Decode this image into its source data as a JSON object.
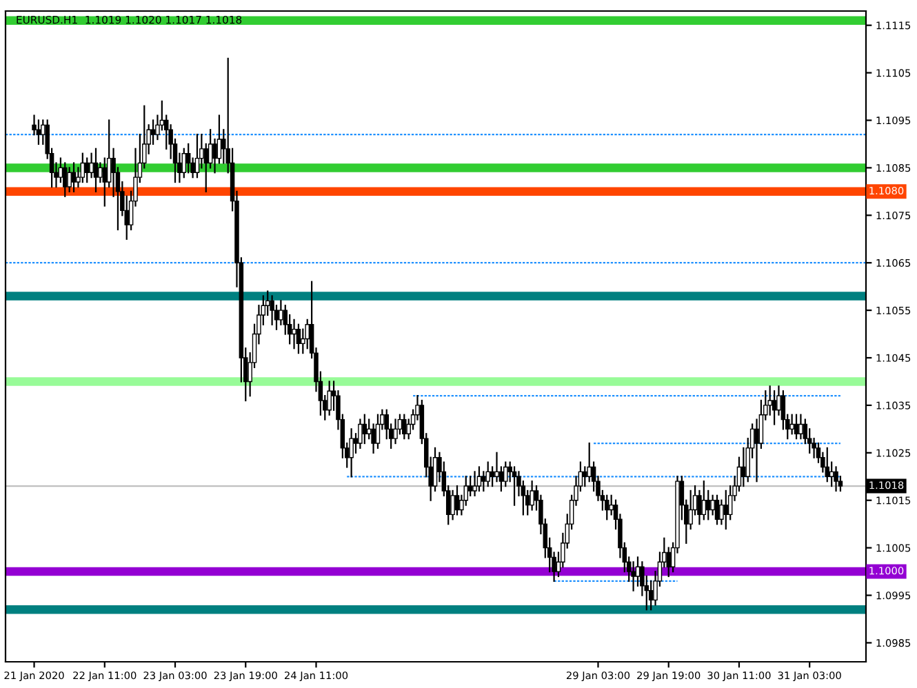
{
  "chart_data": {
    "type": "candlestick",
    "title": "EURUSD.H1  1.1019 1.1020 1.1017 1.1018",
    "categories": [
      "21 Jan 2020",
      null,
      null,
      null,
      null,
      null,
      null,
      null,
      null,
      null,
      null,
      null,
      null,
      null,
      null,
      null,
      "22 Jan 11:00",
      null,
      null,
      null,
      null,
      null,
      null,
      null,
      null,
      null,
      null,
      null,
      null,
      null,
      null,
      null,
      "23 Jan 03:00",
      null,
      null,
      null,
      null,
      null,
      null,
      null,
      null,
      null,
      null,
      null,
      null,
      null,
      null,
      null,
      "23 Jan 19:00",
      null,
      null,
      null,
      null,
      null,
      null,
      null,
      null,
      null,
      null,
      null,
      null,
      null,
      null,
      null,
      "24 Jan 11:00",
      null,
      null,
      null,
      null,
      null,
      null,
      null,
      null,
      null,
      null,
      null,
      null,
      null,
      null,
      null,
      null,
      null,
      null,
      null,
      null,
      null,
      null,
      null,
      null,
      null,
      null,
      null,
      null,
      null,
      null,
      null,
      null,
      null,
      null,
      null,
      null,
      null,
      null,
      null,
      null,
      null,
      null,
      null,
      null,
      null,
      null,
      null,
      null,
      null,
      null,
      null,
      null,
      null,
      null,
      null,
      null,
      null,
      null,
      null,
      null,
      null,
      null,
      null,
      "29 Jan 03:00",
      null,
      null,
      null,
      null,
      null,
      null,
      null,
      null,
      null,
      null,
      null,
      null,
      null,
      null,
      null,
      "29 Jan 19:00",
      null,
      null,
      null,
      null,
      null,
      null,
      null,
      null,
      null,
      null,
      null,
      null,
      null,
      null,
      null,
      "30 Jan 11:00",
      null,
      null,
      null,
      null,
      null,
      null,
      null,
      null,
      null,
      null,
      null,
      null,
      null,
      null,
      null,
      "31 Jan 03:00",
      null,
      null,
      null,
      null,
      null,
      null,
      null
    ],
    "ylim": [
      1.0981,
      1.1118
    ],
    "yticks": [
      1.1115,
      1.1105,
      1.1095,
      1.1085,
      1.1075,
      1.1065,
      1.1055,
      1.1045,
      1.1035,
      1.1025,
      1.1015,
      1.1005,
      1.0995,
      1.0985
    ],
    "ref_lines": [
      {
        "axis": "y",
        "value": 1.1116,
        "color": "#32cd32",
        "line_style": "solid"
      },
      {
        "axis": "y",
        "value": 1.1092,
        "color": "#1e90ff",
        "line_style": "dashed"
      },
      {
        "axis": "y",
        "value": 1.1085,
        "color": "#32cd32",
        "line_style": "solid"
      },
      {
        "axis": "y",
        "value": 1.108,
        "color": "#ff4500",
        "line_style": "solid",
        "label": "1.1080"
      },
      {
        "axis": "y",
        "value": 1.1065,
        "color": "#1e90ff",
        "line_style": "dashed"
      },
      {
        "axis": "y",
        "value": 1.1058,
        "color": "#008080",
        "line_style": "solid"
      },
      {
        "axis": "y",
        "value": 1.104,
        "color": "#98fb98",
        "line_style": "solid"
      },
      {
        "axis": "y",
        "value": 1.1018,
        "color": "#c0c0c0",
        "line_style": "solid",
        "label": "1.1018"
      },
      {
        "axis": "y",
        "value": 1.1,
        "color": "#9400d3",
        "line_style": "solid",
        "label": "1.1000"
      },
      {
        "axis": "y",
        "value": 1.0992,
        "color": "#008080",
        "line_style": "solid"
      }
    ],
    "color": "#000000",
    "ohlc": [
      [
        1.1094,
        1.1096,
        1.1092,
        1.1093
      ],
      [
        1.1093,
        1.1095,
        1.109,
        1.1092
      ],
      [
        1.1092,
        1.1095,
        1.109,
        1.1094
      ],
      [
        1.1094,
        1.1095,
        1.1087,
        1.1088
      ],
      [
        1.1088,
        1.1089,
        1.1081,
        1.1084
      ],
      [
        1.1084,
        1.1086,
        1.1081,
        1.1083
      ],
      [
        1.1083,
        1.1087,
        1.1082,
        1.1085
      ],
      [
        1.1085,
        1.1086,
        1.1079,
        1.1081
      ],
      [
        1.1081,
        1.1085,
        1.108,
        1.1084
      ],
      [
        1.1084,
        1.1086,
        1.108,
        1.1082
      ],
      [
        1.1082,
        1.1085,
        1.1081,
        1.1083
      ],
      [
        1.1083,
        1.1088,
        1.1082,
        1.1086
      ],
      [
        1.1086,
        1.1087,
        1.1082,
        1.1084
      ],
      [
        1.1084,
        1.1088,
        1.1083,
        1.1086
      ],
      [
        1.1086,
        1.1089,
        1.108,
        1.1083
      ],
      [
        1.1083,
        1.1086,
        1.1082,
        1.1085
      ],
      [
        1.1085,
        1.1087,
        1.1077,
        1.1082
      ],
      [
        1.1082,
        1.1095,
        1.1081,
        1.1087
      ],
      [
        1.1087,
        1.1089,
        1.1079,
        1.1084
      ],
      [
        1.1084,
        1.1085,
        1.1072,
        1.108
      ],
      [
        1.108,
        1.1082,
        1.1075,
        1.1076
      ],
      [
        1.1076,
        1.1079,
        1.107,
        1.1073
      ],
      [
        1.1073,
        1.108,
        1.1072,
        1.1078
      ],
      [
        1.1078,
        1.1089,
        1.1077,
        1.1083
      ],
      [
        1.1083,
        1.1092,
        1.1082,
        1.1086
      ],
      [
        1.1086,
        1.1098,
        1.1085,
        1.109
      ],
      [
        1.109,
        1.1094,
        1.1088,
        1.1093
      ],
      [
        1.1093,
        1.1095,
        1.109,
        1.1092
      ],
      [
        1.1092,
        1.1096,
        1.1091,
        1.1094
      ],
      [
        1.1094,
        1.1099,
        1.1093,
        1.1095
      ],
      [
        1.1095,
        1.1096,
        1.1089,
        1.1093
      ],
      [
        1.1093,
        1.1094,
        1.1087,
        1.109
      ],
      [
        1.109,
        1.1091,
        1.1082,
        1.1086
      ],
      [
        1.1086,
        1.1088,
        1.1082,
        1.1084
      ],
      [
        1.1084,
        1.1089,
        1.1083,
        1.1088
      ],
      [
        1.1088,
        1.109,
        1.1084,
        1.1086
      ],
      [
        1.1086,
        1.1087,
        1.1083,
        1.1084
      ],
      [
        1.1084,
        1.1092,
        1.1083,
        1.1087
      ],
      [
        1.1087,
        1.1092,
        1.1085,
        1.1089
      ],
      [
        1.1089,
        1.109,
        1.108,
        1.1086
      ],
      [
        1.1086,
        1.1093,
        1.1085,
        1.109
      ],
      [
        1.109,
        1.1091,
        1.1084,
        1.1087
      ],
      [
        1.1087,
        1.1096,
        1.1086,
        1.1091
      ],
      [
        1.1091,
        1.1093,
        1.1086,
        1.1089
      ],
      [
        1.1089,
        1.1108,
        1.1084,
        1.1086
      ],
      [
        1.1086,
        1.1089,
        1.1076,
        1.1078
      ],
      [
        1.1078,
        1.108,
        1.106,
        1.1065
      ],
      [
        1.1065,
        1.1066,
        1.104,
        1.1045
      ],
      [
        1.1045,
        1.1047,
        1.1036,
        1.104
      ],
      [
        1.104,
        1.1046,
        1.1037,
        1.1044
      ],
      [
        1.1044,
        1.1052,
        1.1043,
        1.105
      ],
      [
        1.105,
        1.1056,
        1.1048,
        1.1054
      ],
      [
        1.1054,
        1.1058,
        1.1052,
        1.1056
      ],
      [
        1.1056,
        1.1059,
        1.1054,
        1.1057
      ],
      [
        1.1057,
        1.1058,
        1.1052,
        1.1055
      ],
      [
        1.1055,
        1.1056,
        1.1051,
        1.1053
      ],
      [
        1.1053,
        1.1057,
        1.1052,
        1.1055
      ],
      [
        1.1055,
        1.1056,
        1.105,
        1.1052
      ],
      [
        1.1052,
        1.1054,
        1.1048,
        1.105
      ],
      [
        1.105,
        1.1053,
        1.1047,
        1.1051
      ],
      [
        1.1051,
        1.1052,
        1.1046,
        1.1048
      ],
      [
        1.1048,
        1.1051,
        1.1046,
        1.1049
      ],
      [
        1.1049,
        1.1053,
        1.1047,
        1.1052
      ],
      [
        1.1052,
        1.1061,
        1.1045,
        1.1046
      ],
      [
        1.1046,
        1.1047,
        1.1038,
        1.104
      ],
      [
        1.104,
        1.1042,
        1.1033,
        1.1036
      ],
      [
        1.1036,
        1.1037,
        1.1032,
        1.1034
      ],
      [
        1.1034,
        1.104,
        1.1033,
        1.1038
      ],
      [
        1.1038,
        1.104,
        1.1034,
        1.1037
      ],
      [
        1.1037,
        1.1038,
        1.103,
        1.1032
      ],
      [
        1.1032,
        1.1033,
        1.1024,
        1.1026
      ],
      [
        1.1026,
        1.1027,
        1.1022,
        1.1024
      ],
      [
        1.1024,
        1.103,
        1.102,
        1.1028
      ],
      [
        1.1028,
        1.1029,
        1.1025,
        1.1027
      ],
      [
        1.1027,
        1.1032,
        1.1026,
        1.1031
      ],
      [
        1.1031,
        1.1033,
        1.1027,
        1.1029
      ],
      [
        1.1029,
        1.1032,
        1.1028,
        1.103
      ],
      [
        1.103,
        1.1031,
        1.1025,
        1.1027
      ],
      [
        1.1027,
        1.1033,
        1.1026,
        1.1031
      ],
      [
        1.1031,
        1.1034,
        1.103,
        1.1033
      ],
      [
        1.1033,
        1.1034,
        1.1028,
        1.103
      ],
      [
        1.103,
        1.1031,
        1.1026,
        1.1028
      ],
      [
        1.1028,
        1.1032,
        1.1027,
        1.103
      ],
      [
        1.103,
        1.1033,
        1.1029,
        1.1032
      ],
      [
        1.1032,
        1.1033,
        1.1028,
        1.1029
      ],
      [
        1.1029,
        1.1032,
        1.1028,
        1.1031
      ],
      [
        1.1031,
        1.1034,
        1.103,
        1.1033
      ],
      [
        1.1033,
        1.1037,
        1.1032,
        1.1035
      ],
      [
        1.1035,
        1.1036,
        1.1027,
        1.1028
      ],
      [
        1.1028,
        1.1029,
        1.102,
        1.1022
      ],
      [
        1.1022,
        1.1024,
        1.1015,
        1.1018
      ],
      [
        1.1018,
        1.1026,
        1.1017,
        1.1024
      ],
      [
        1.1024,
        1.1025,
        1.1019,
        1.1021
      ],
      [
        1.1021,
        1.1023,
        1.1016,
        1.1017
      ],
      [
        1.1017,
        1.1018,
        1.101,
        1.1012
      ],
      [
        1.1012,
        1.1017,
        1.1011,
        1.1016
      ],
      [
        1.1016,
        1.1018,
        1.1012,
        1.1013
      ],
      [
        1.1013,
        1.1016,
        1.1012,
        1.1015
      ],
      [
        1.1015,
        1.102,
        1.1014,
        1.1018
      ],
      [
        1.1018,
        1.102,
        1.1016,
        1.1017
      ],
      [
        1.1017,
        1.1021,
        1.1016,
        1.1018
      ],
      [
        1.1018,
        1.1022,
        1.1017,
        1.102
      ],
      [
        1.102,
        1.1021,
        1.1017,
        1.1019
      ],
      [
        1.1019,
        1.1023,
        1.1018,
        1.1021
      ],
      [
        1.1021,
        1.1022,
        1.1018,
        1.102
      ],
      [
        1.102,
        1.1025,
        1.1019,
        1.1021
      ],
      [
        1.1021,
        1.1022,
        1.1017,
        1.1019
      ],
      [
        1.1019,
        1.1023,
        1.1018,
        1.1022
      ],
      [
        1.1022,
        1.1023,
        1.1019,
        1.1021
      ],
      [
        1.1021,
        1.1022,
        1.1014,
        1.102
      ],
      [
        1.102,
        1.1021,
        1.1016,
        1.1018
      ],
      [
        1.1018,
        1.1019,
        1.1012,
        1.1016
      ],
      [
        1.1016,
        1.1017,
        1.1012,
        1.1014
      ],
      [
        1.1014,
        1.1019,
        1.1013,
        1.1017
      ],
      [
        1.1017,
        1.1018,
        1.1013,
        1.1015
      ],
      [
        1.1015,
        1.1016,
        1.1008,
        1.101
      ],
      [
        1.101,
        1.1011,
        1.1003,
        1.1005
      ],
      [
        1.1005,
        1.1007,
        1.1,
        1.1003
      ],
      [
        1.1003,
        1.1004,
        1.0998,
        1.1
      ],
      [
        1.1,
        1.1004,
        1.0999,
        1.1002
      ],
      [
        1.1002,
        1.1008,
        1.1001,
        1.1006
      ],
      [
        1.1006,
        1.1012,
        1.1005,
        1.101
      ],
      [
        1.101,
        1.1016,
        1.1009,
        1.1015
      ],
      [
        1.1015,
        1.102,
        1.1014,
        1.1018
      ],
      [
        1.1018,
        1.1023,
        1.1017,
        1.1021
      ],
      [
        1.1021,
        1.1022,
        1.1018,
        1.102
      ],
      [
        1.102,
        1.1027,
        1.1019,
        1.1022
      ],
      [
        1.1022,
        1.1023,
        1.1017,
        1.1019
      ],
      [
        1.1019,
        1.102,
        1.1015,
        1.1016
      ],
      [
        1.1016,
        1.1017,
        1.1013,
        1.1015
      ],
      [
        1.1015,
        1.1016,
        1.1011,
        1.1013
      ],
      [
        1.1013,
        1.1016,
        1.1012,
        1.1014
      ],
      [
        1.1014,
        1.1015,
        1.1009,
        1.1011
      ],
      [
        1.1011,
        1.1012,
        1.1003,
        1.1005
      ],
      [
        1.1005,
        1.1006,
        1.1,
        1.1002
      ],
      [
        1.1002,
        1.1003,
        1.0998,
        1.1
      ],
      [
        1.1,
        1.1002,
        1.0996,
        1.0999
      ],
      [
        1.0999,
        1.1003,
        1.0997,
        1.1001
      ],
      [
        1.1001,
        1.1002,
        1.0995,
        1.0997
      ],
      [
        1.0997,
        1.0999,
        1.0992,
        1.0996
      ],
      [
        1.0996,
        1.0998,
        1.0992,
        1.0994
      ],
      [
        1.0994,
        1.1,
        1.0993,
        1.0998
      ],
      [
        1.0998,
        1.1004,
        1.0997,
        1.1002
      ],
      [
        1.1002,
        1.1007,
        1.1001,
        1.1004
      ],
      [
        1.1004,
        1.1005,
        1.0999,
        1.1001
      ],
      [
        1.1001,
        1.1006,
        1.1,
        1.1005
      ],
      [
        1.1005,
        1.102,
        1.1004,
        1.1019
      ],
      [
        1.1019,
        1.102,
        1.1011,
        1.1014
      ],
      [
        1.1014,
        1.1015,
        1.1006,
        1.101
      ],
      [
        1.101,
        1.1017,
        1.1009,
        1.1013
      ],
      [
        1.1013,
        1.1018,
        1.1012,
        1.1016
      ],
      [
        1.1016,
        1.1017,
        1.101,
        1.1012
      ],
      [
        1.1012,
        1.1019,
        1.1011,
        1.1015
      ],
      [
        1.1015,
        1.1017,
        1.1011,
        1.1013
      ],
      [
        1.1013,
        1.1016,
        1.1012,
        1.1015
      ],
      [
        1.1015,
        1.1016,
        1.101,
        1.1011
      ],
      [
        1.1011,
        1.1015,
        1.101,
        1.1014
      ],
      [
        1.1014,
        1.1017,
        1.1009,
        1.1012
      ],
      [
        1.1012,
        1.1018,
        1.1011,
        1.1016
      ],
      [
        1.1016,
        1.102,
        1.1015,
        1.1018
      ],
      [
        1.1018,
        1.1024,
        1.1017,
        1.1022
      ],
      [
        1.1022,
        1.1026,
        1.1018,
        1.102
      ],
      [
        1.102,
        1.1028,
        1.1019,
        1.1026
      ],
      [
        1.1026,
        1.1031,
        1.1024,
        1.103
      ],
      [
        1.103,
        1.1032,
        1.1019,
        1.1027
      ],
      [
        1.1027,
        1.1036,
        1.1026,
        1.1033
      ],
      [
        1.1033,
        1.1038,
        1.1032,
        1.1035
      ],
      [
        1.1035,
        1.1039,
        1.1033,
        1.1036
      ],
      [
        1.1036,
        1.1038,
        1.1031,
        1.1034
      ],
      [
        1.1034,
        1.1039,
        1.1033,
        1.1037
      ],
      [
        1.1037,
        1.1038,
        1.103,
        1.1032
      ],
      [
        1.1032,
        1.1033,
        1.1028,
        1.103
      ],
      [
        1.103,
        1.1033,
        1.1029,
        1.1031
      ],
      [
        1.1031,
        1.1033,
        1.1028,
        1.1029
      ],
      [
        1.1029,
        1.1033,
        1.1028,
        1.1031
      ],
      [
        1.1031,
        1.1032,
        1.1027,
        1.1028
      ],
      [
        1.1028,
        1.103,
        1.1025,
        1.1027
      ],
      [
        1.1027,
        1.1028,
        1.1024,
        1.1026
      ],
      [
        1.1026,
        1.1027,
        1.1023,
        1.1024
      ],
      [
        1.1024,
        1.1025,
        1.1021,
        1.1022
      ],
      [
        1.1022,
        1.1026,
        1.1019,
        1.102
      ],
      [
        1.102,
        1.1023,
        1.1018,
        1.1021
      ],
      [
        1.1021,
        1.1022,
        1.1017,
        1.1019
      ],
      [
        1.1019,
        1.102,
        1.1017,
        1.1018
      ]
    ],
    "series": [
      {
        "type": "line",
        "color": "#1e90ff",
        "line_style": "dashed",
        "values": [
          null,
          null,
          null,
          null,
          null,
          null,
          null,
          null,
          null,
          null,
          null,
          null,
          null,
          null,
          null,
          null,
          null,
          null,
          null,
          null,
          null,
          null,
          null,
          null,
          null,
          null,
          null,
          null,
          null,
          null,
          null,
          null,
          null,
          null,
          null,
          null,
          null,
          null,
          null,
          null,
          null,
          null,
          null,
          null,
          null,
          null,
          null,
          null,
          null,
          null,
          null,
          null,
          null,
          null,
          null,
          null,
          null,
          null,
          null,
          null,
          null,
          null,
          null,
          null,
          null,
          null,
          null,
          null,
          null,
          null,
          null,
          null,
          null,
          null,
          null,
          null,
          null,
          null,
          null,
          null,
          null,
          null,
          null,
          null,
          null,
          null,
          1.1037,
          1.1037,
          1.1037,
          1.1037,
          1.1037,
          1.1037,
          1.1037,
          1.1037,
          1.1037,
          1.1037,
          1.1037,
          1.1037,
          1.1037,
          1.1037,
          1.1037,
          1.1037,
          1.1037,
          1.1037,
          1.1037,
          1.1037,
          1.1037,
          1.1037,
          1.1037,
          1.1037,
          1.1037,
          1.1037,
          1.1037,
          1.1037,
          1.1037,
          1.1037,
          1.1037,
          1.1037,
          1.1037,
          1.1037,
          1.1037,
          1.1037,
          1.1037,
          1.1037,
          1.1037,
          1.1037,
          1.1037,
          1.1037,
          1.1037,
          1.1037,
          1.1037,
          1.1037,
          1.1037,
          1.1037,
          1.1037,
          1.1037,
          1.1037,
          1.1037,
          1.1037,
          1.1037,
          1.1037,
          1.1037,
          1.1037,
          1.1037,
          1.1037,
          1.1037,
          1.1037,
          1.1037,
          1.1037,
          1.1037,
          1.1037,
          1.1037,
          1.1037,
          1.1037,
          1.1037,
          1.1037,
          1.1037,
          1.1037,
          1.1037,
          1.1037,
          1.1037,
          1.1037,
          1.1037,
          1.1037,
          1.1037,
          1.1037,
          1.1037,
          1.1037,
          1.1037,
          1.1037,
          1.1037,
          1.1037,
          1.1037,
          1.1037,
          1.1037,
          1.1037,
          1.1037,
          1.1037,
          1.1037,
          1.1037,
          1.1037,
          1.1037,
          1.1037,
          1.1037
        ]
      },
      {
        "type": "line",
        "color": "#1e90ff",
        "line_style": "dashed",
        "values": [
          null,
          null,
          null,
          null,
          null,
          null,
          null,
          null,
          null,
          null,
          null,
          null,
          null,
          null,
          null,
          null,
          null,
          null,
          null,
          null,
          null,
          null,
          null,
          null,
          null,
          null,
          null,
          null,
          null,
          null,
          null,
          null,
          null,
          null,
          null,
          null,
          null,
          null,
          null,
          null,
          null,
          null,
          null,
          null,
          null,
          null,
          null,
          null,
          null,
          null,
          null,
          null,
          null,
          null,
          null,
          null,
          null,
          null,
          null,
          null,
          null,
          null,
          null,
          null,
          null,
          null,
          null,
          null,
          null,
          null,
          null,
          1.102,
          1.102,
          1.102,
          1.102,
          1.102,
          1.102,
          1.102,
          1.102,
          1.102,
          1.102,
          1.102,
          1.102,
          1.102,
          1.102,
          1.102,
          1.102,
          1.102,
          1.102,
          1.102,
          1.102,
          1.102,
          1.102,
          1.102,
          1.102,
          1.102,
          1.102,
          1.102,
          1.102,
          1.102,
          1.102,
          1.102,
          1.102,
          1.102,
          1.102,
          1.102,
          1.102,
          1.102,
          1.102,
          1.102,
          1.102,
          1.102,
          1.102,
          1.102,
          1.102,
          1.102,
          1.102,
          1.102,
          1.102,
          1.102,
          1.102,
          1.102,
          1.102,
          1.102,
          1.102,
          1.102,
          1.102,
          1.102,
          1.102,
          1.102,
          1.102,
          1.102,
          1.102,
          1.102,
          1.102,
          1.102,
          1.102,
          1.102,
          1.102,
          1.102,
          1.102,
          1.102,
          1.102,
          1.102,
          1.102,
          1.102,
          1.102,
          1.102,
          1.102,
          1.102,
          1.102,
          1.102,
          1.102,
          1.102,
          1.102,
          1.102,
          1.102,
          1.102,
          1.102,
          1.102,
          1.102,
          1.102,
          1.102,
          1.102,
          1.102,
          1.102,
          1.102,
          1.102,
          1.102,
          1.102,
          1.102,
          1.102,
          1.102,
          1.102,
          1.102,
          1.102,
          1.102,
          1.102,
          1.102,
          1.102,
          1.102,
          1.102,
          1.102,
          1.102
        ]
      },
      {
        "type": "line",
        "color": "#1e90ff",
        "line_style": "dashed",
        "values": [
          null,
          null,
          null,
          null,
          null,
          null,
          null,
          null,
          null,
          null,
          null,
          null,
          null,
          null,
          null,
          null,
          null,
          null,
          null,
          null,
          null,
          null,
          null,
          null,
          null,
          null,
          null,
          null,
          null,
          null,
          null,
          null,
          null,
          null,
          null,
          null,
          null,
          null,
          null,
          null,
          null,
          null,
          null,
          null,
          null,
          null,
          null,
          null,
          null,
          null,
          null,
          null,
          null,
          null,
          null,
          null,
          null,
          null,
          null,
          null,
          null,
          null,
          null,
          null,
          null,
          null,
          null,
          null,
          null,
          null,
          null,
          null,
          null,
          null,
          null,
          null,
          null,
          null,
          null,
          null,
          null,
          null,
          null,
          null,
          null,
          null,
          null,
          null,
          null,
          null,
          null,
          null,
          null,
          null,
          null,
          null,
          null,
          null,
          null,
          null,
          null,
          null,
          null,
          null,
          null,
          null,
          null,
          null,
          null,
          null,
          null,
          null,
          null,
          null,
          null,
          null,
          null,
          null,
          null,
          null,
          null,
          null,
          null,
          null,
          null,
          null,
          null,
          1.1027,
          1.1027,
          1.1027,
          1.1027,
          1.1027,
          1.1027,
          1.1027,
          1.1027,
          1.1027,
          1.1027,
          1.1027,
          1.1027,
          1.1027,
          1.1027,
          1.1027,
          1.1027,
          1.1027,
          1.1027,
          1.1027,
          1.1027,
          1.1027,
          1.1027,
          1.1027,
          1.1027,
          1.1027,
          1.1027,
          1.1027,
          1.1027,
          1.1027,
          1.1027,
          1.1027,
          1.1027,
          1.1027,
          1.1027,
          1.1027,
          1.1027,
          1.1027,
          1.1027,
          1.1027,
          1.1027,
          1.1027,
          1.1027,
          1.1027,
          1.1027,
          1.1027,
          1.1027,
          1.1027,
          1.1027,
          1.1027,
          1.1027,
          1.1027,
          1.1027,
          1.1027,
          1.1027,
          1.1027,
          1.1027,
          1.1027
        ]
      },
      {
        "type": "line",
        "color": "#1e90ff",
        "line_style": "dashed",
        "values": [
          null,
          null,
          null,
          null,
          null,
          null,
          null,
          null,
          null,
          null,
          null,
          null,
          null,
          null,
          null,
          null,
          null,
          null,
          null,
          null,
          null,
          null,
          null,
          null,
          null,
          null,
          null,
          null,
          null,
          null,
          null,
          null,
          null,
          null,
          null,
          null,
          null,
          null,
          null,
          null,
          null,
          null,
          null,
          null,
          null,
          null,
          null,
          null,
          null,
          null,
          null,
          null,
          null,
          null,
          null,
          null,
          null,
          null,
          null,
          null,
          null,
          null,
          null,
          null,
          null,
          null,
          null,
          null,
          null,
          null,
          null,
          null,
          null,
          null,
          null,
          null,
          null,
          null,
          null,
          null,
          null,
          null,
          null,
          null,
          null,
          null,
          null,
          null,
          null,
          null,
          null,
          null,
          null,
          null,
          null,
          null,
          null,
          null,
          null,
          null,
          null,
          null,
          null,
          null,
          null,
          null,
          null,
          null,
          null,
          null,
          null,
          null,
          null,
          null,
          null,
          null,
          null,
          null,
          1.0998,
          1.0998,
          1.0998,
          1.0998,
          1.0998,
          1.0998,
          1.0998,
          1.0998,
          1.0998,
          1.0998,
          1.0998,
          1.0998,
          1.0998,
          1.0998,
          1.0998,
          1.0998,
          1.0998,
          1.0998,
          1.0998,
          1.0998,
          1.0998,
          1.0998,
          1.0998,
          1.0998,
          1.0998,
          1.0998,
          1.0998,
          1.0998,
          1.0998,
          null,
          null,
          null,
          null,
          null,
          null,
          null,
          null,
          null,
          null,
          null,
          null,
          null,
          null,
          null,
          null,
          null,
          null,
          null,
          null,
          null,
          null,
          null,
          null,
          null,
          null,
          null,
          null,
          null,
          null,
          null,
          null,
          null,
          null,
          null,
          null,
          null
        ]
      }
    ]
  }
}
